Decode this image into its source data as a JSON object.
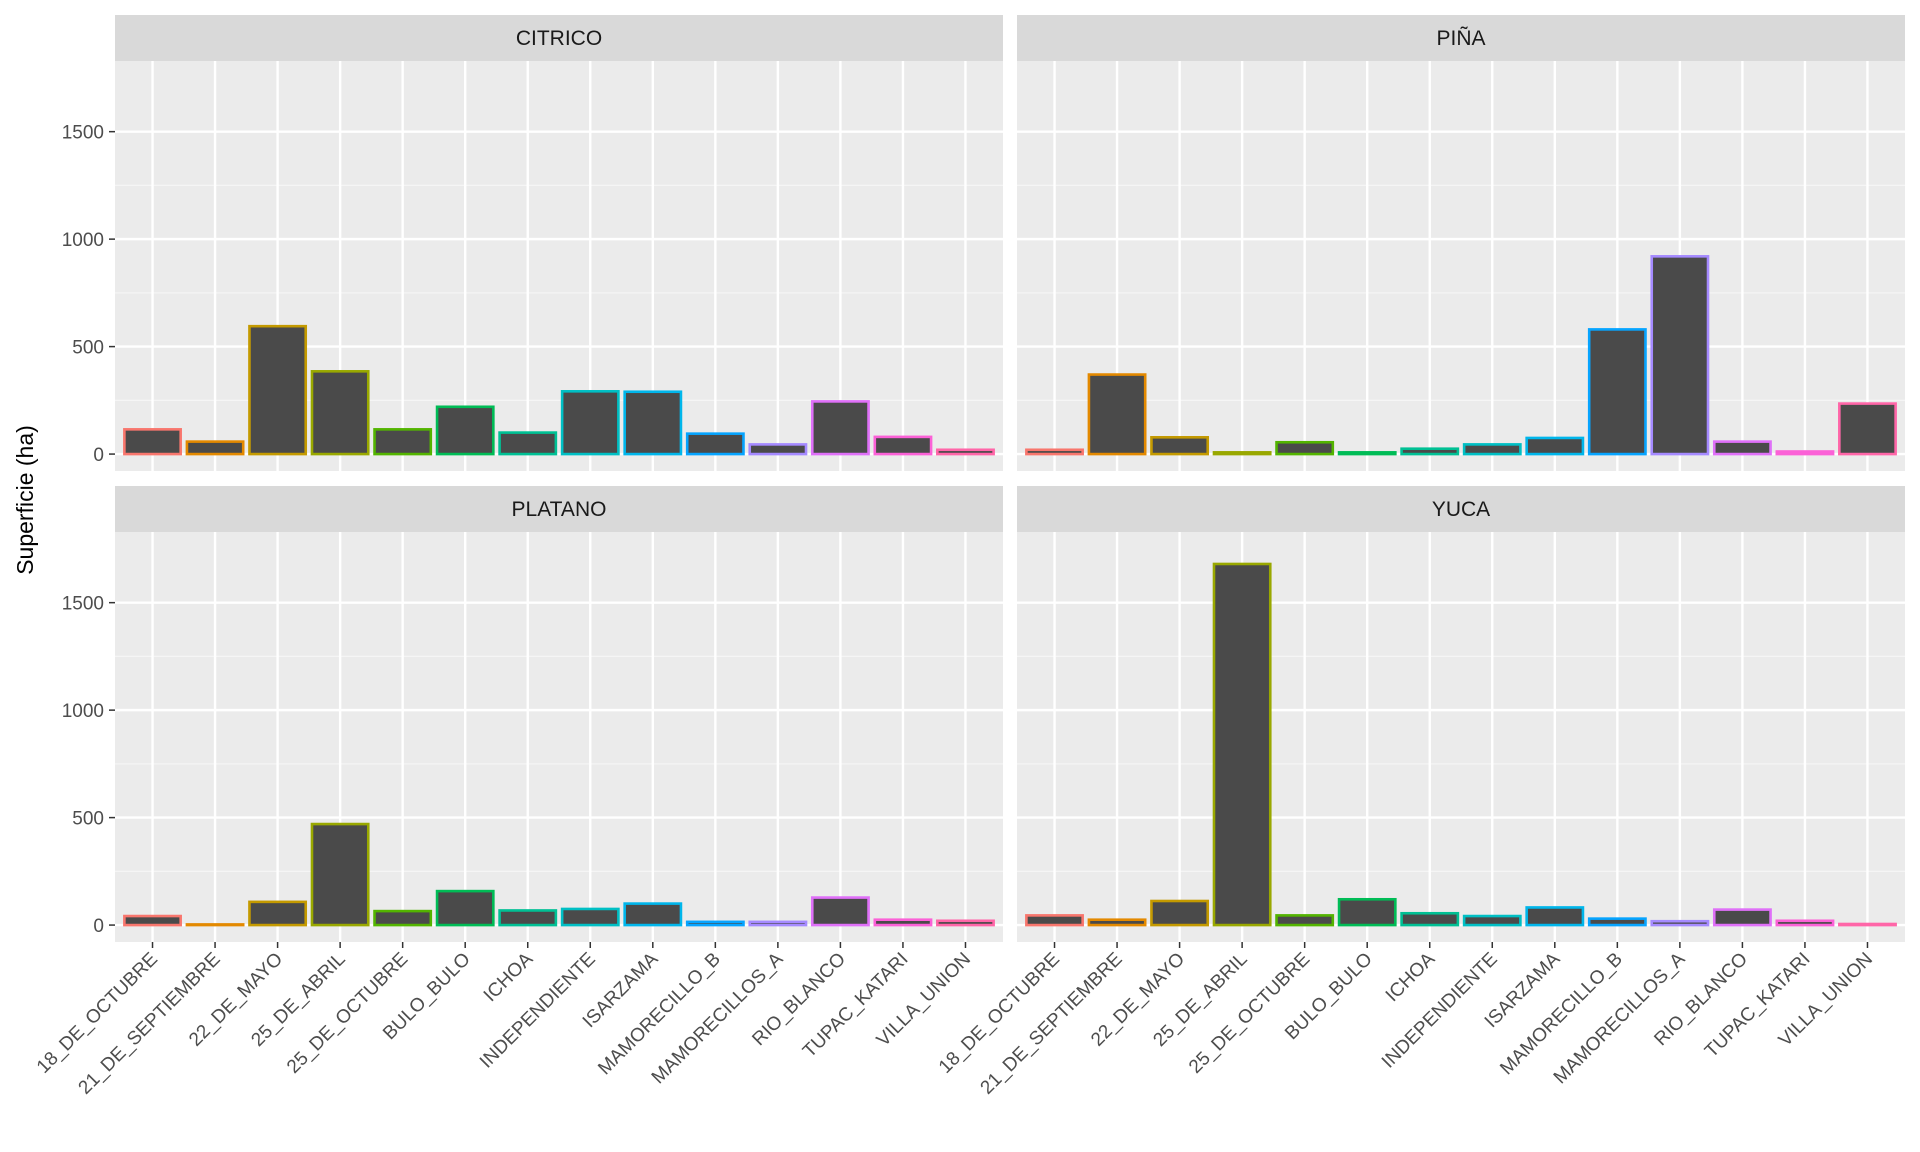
{
  "chart_data": {
    "type": "bar",
    "facet_layout": "2x2 grid",
    "ylabel": "Superficie (ha)",
    "xlabel": "",
    "ylim": [
      0,
      1750
    ],
    "y_ticks": [
      0,
      500,
      1000,
      1500
    ],
    "grid": true,
    "legend": "none",
    "bar_fill": "#4a4a4a",
    "categories": [
      "18_DE_OCTUBRE",
      "21_DE_SEPTIEMBRE",
      "22_DE_MAYO",
      "25_DE_ABRIL",
      "25_DE_OCTUBRE",
      "BULO_BULO",
      "ICHOA",
      "INDEPENDIENTE",
      "ISARZAMA",
      "MAMORECILLO_B",
      "MAMORECILLOS_A",
      "RIO_BLANCO",
      "TUPAC_KATARI",
      "VILLA_UNION"
    ],
    "category_colors": [
      "#F8766D",
      "#E38900",
      "#C49A00",
      "#99A800",
      "#53B400",
      "#00BC56",
      "#00C094",
      "#00BFC4",
      "#00B6EB",
      "#06A4FF",
      "#A58AFF",
      "#DF70F8",
      "#FB61D7",
      "#FF66A8"
    ],
    "facets": [
      {
        "title": "CITRICO",
        "values": [
          115,
          58,
          595,
          385,
          115,
          220,
          100,
          292,
          290,
          95,
          45,
          245,
          80,
          20
        ]
      },
      {
        "title": "PIÑA",
        "values": [
          20,
          370,
          78,
          8,
          55,
          8,
          25,
          45,
          75,
          580,
          920,
          58,
          12,
          235
        ]
      },
      {
        "title": "PLATANO",
        "values": [
          42,
          3,
          108,
          470,
          65,
          158,
          68,
          75,
          100,
          15,
          15,
          128,
          25,
          20
        ]
      },
      {
        "title": "YUCA",
        "values": [
          45,
          25,
          112,
          1680,
          45,
          120,
          55,
          42,
          82,
          30,
          18,
          72,
          20,
          5
        ]
      }
    ]
  }
}
